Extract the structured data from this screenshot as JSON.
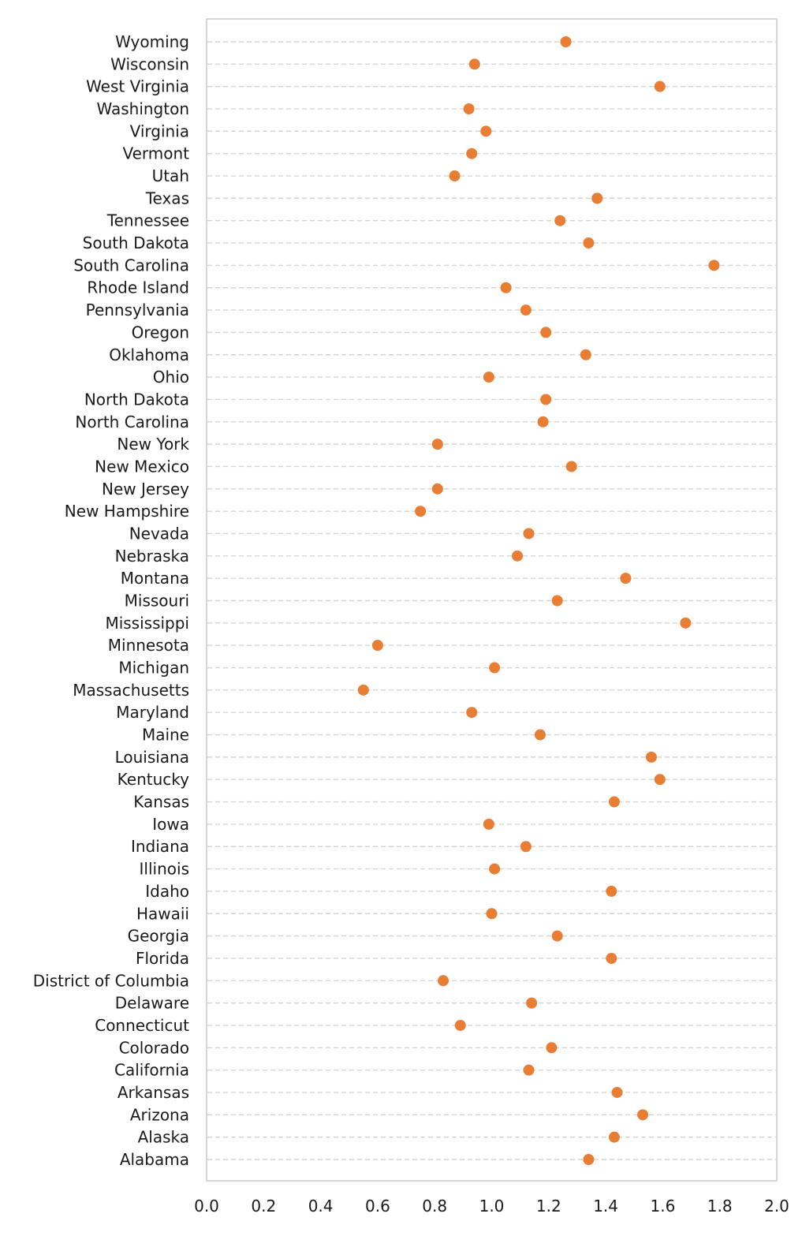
{
  "chart_data": {
    "type": "scatter",
    "title": "",
    "xlabel": "",
    "ylabel": "",
    "xlim": [
      0.0,
      2.0
    ],
    "x_ticks": [
      "0.0",
      "0.2",
      "0.4",
      "0.6",
      "0.8",
      "1.0",
      "1.2",
      "1.4",
      "1.6",
      "1.8",
      "2.0"
    ],
    "grid": "horizontal dashed",
    "legend": "none",
    "marker_color": "#E87D34",
    "categories": [
      "Wyoming",
      "Wisconsin",
      "West Virginia",
      "Washington",
      "Virginia",
      "Vermont",
      "Utah",
      "Texas",
      "Tennessee",
      "South Dakota",
      "South Carolina",
      "Rhode Island",
      "Pennsylvania",
      "Oregon",
      "Oklahoma",
      "Ohio",
      "North Dakota",
      "North Carolina",
      "New York",
      "New Mexico",
      "New Jersey",
      "New Hampshire",
      "Nevada",
      "Nebraska",
      "Montana",
      "Missouri",
      "Mississippi",
      "Minnesota",
      "Michigan",
      "Massachusetts",
      "Maryland",
      "Maine",
      "Louisiana",
      "Kentucky",
      "Kansas",
      "Iowa",
      "Indiana",
      "Illinois",
      "Idaho",
      "Hawaii",
      "Georgia",
      "Florida",
      "District of Columbia",
      "Delaware",
      "Connecticut",
      "Colorado",
      "California",
      "Arkansas",
      "Arizona",
      "Alaska",
      "Alabama"
    ],
    "values": [
      1.26,
      0.94,
      1.59,
      0.92,
      0.98,
      0.93,
      0.87,
      1.37,
      1.24,
      1.34,
      1.78,
      1.05,
      1.12,
      1.19,
      1.33,
      0.99,
      1.19,
      1.18,
      0.81,
      1.28,
      0.81,
      0.75,
      1.13,
      1.09,
      1.47,
      1.23,
      1.68,
      0.6,
      1.01,
      0.55,
      0.93,
      1.17,
      1.56,
      1.59,
      1.43,
      0.99,
      1.12,
      1.01,
      1.42,
      1.0,
      1.23,
      1.42,
      0.83,
      1.14,
      0.89,
      1.21,
      1.13,
      1.44,
      1.53,
      1.43,
      1.34
    ]
  }
}
